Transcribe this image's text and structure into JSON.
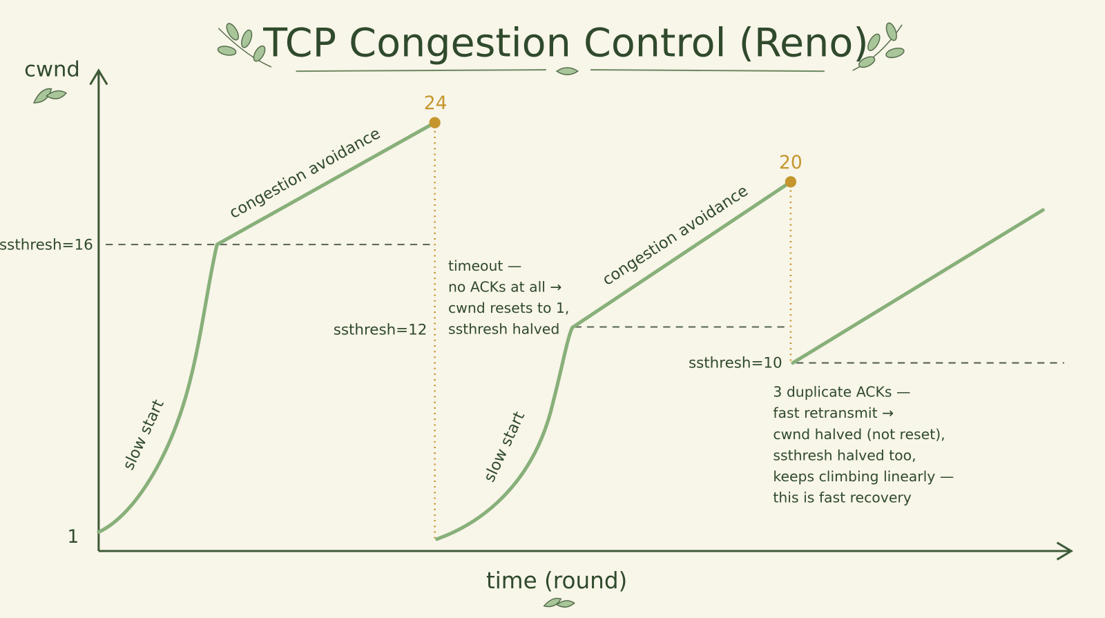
{
  "title": "TCP Congestion Control (Reno)",
  "y_axis_label": "cwnd",
  "x_axis_label": "time (round)",
  "y_labels": [
    "1",
    "ssthresh=16",
    "ssthresh=12",
    "ssthresh=10"
  ],
  "peaks": [
    "24",
    "20"
  ],
  "phase_labels": [
    "slow start",
    "congestion avoidance",
    "slow start",
    "congestion avoidance"
  ],
  "annotations": [
    {
      "lines": [
        "timeout —",
        "no ACKs at all →",
        "cwnd resets to 1,",
        "ssthresh halved"
      ]
    },
    {
      "lines": [
        "3 duplicate ACKs —",
        "fast retransmit →",
        "cwnd halved (not reset),",
        "ssthresh halved too,",
        "keeps climbing linearly —",
        "this is fast recovery"
      ]
    }
  ]
}
